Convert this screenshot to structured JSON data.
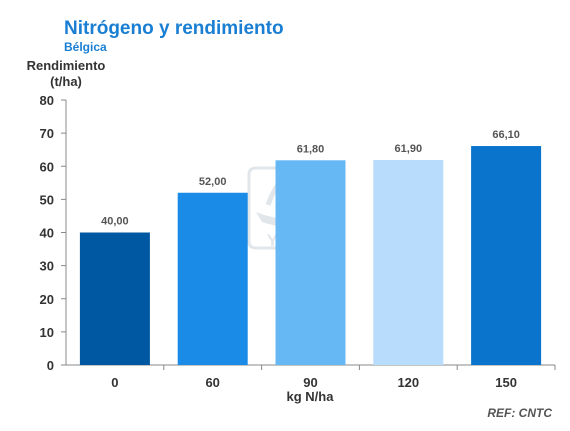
{
  "chart_data": {
    "type": "bar",
    "title": "Nitrógeno y rendimiento",
    "subtitle": "Bélgica",
    "ylabel": "Rendimiento (t/ha)",
    "xlabel": "kg N/ha",
    "categories": [
      "0",
      "60",
      "90",
      "120",
      "150"
    ],
    "values": [
      40.0,
      52.0,
      61.8,
      61.9,
      66.1
    ],
    "value_labels": [
      "40,00",
      "52,00",
      "61,80",
      "61,90",
      "66,10"
    ],
    "bar_colors": [
      "#0058a3",
      "#1a8ce8",
      "#66b8f5",
      "#b8dcfb",
      "#0a73cc"
    ],
    "yticks": [
      0,
      10,
      20,
      30,
      40,
      50,
      60,
      70,
      80
    ],
    "ylim": [
      0,
      80
    ],
    "grid": false,
    "legend": "none"
  },
  "header": {
    "ylabel_line1": "Rendimiento",
    "ylabel_line2": "(t/ha)"
  },
  "footer": {
    "reference": "REF: CNTC"
  },
  "watermark": {
    "text": "YARA",
    "icon": "yara-logo-icon"
  }
}
